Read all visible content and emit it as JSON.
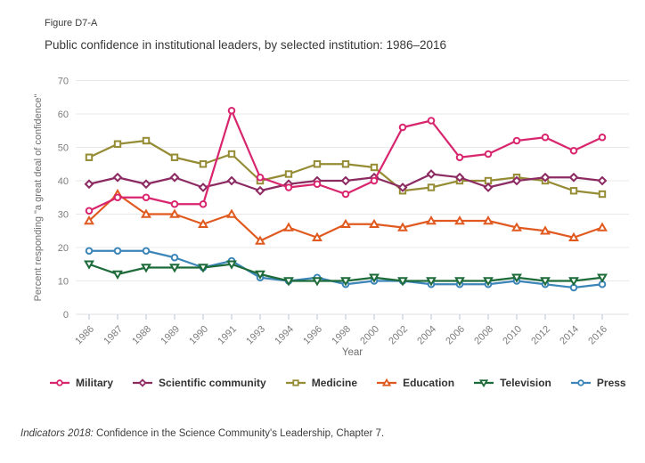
{
  "figure_label": "Figure D7-A",
  "title": "Public confidence in institutional leaders, by selected institution: 1986–2016",
  "footer": {
    "source_italic": "Indicators 2018:",
    "source_rest": " Confidence in the Science Community's Leadership, Chapter 7."
  },
  "theme": {
    "grid_color": "#e8e8e8",
    "axis_line_color": "#e0e0e0",
    "tick_mark_color": "#b9c6da",
    "tick_label_color": "#7d7d7d",
    "axis_title_color": "#6f6f6f",
    "legend_text_color": "#333333",
    "background": "#ffffff"
  },
  "chart_data": {
    "type": "line",
    "title": "Public confidence in institutional leaders, by selected institution: 1986–2016",
    "xlabel": "Year",
    "ylabel": "Percent responding \"a great deal of confidence\"",
    "ylim": [
      0,
      70
    ],
    "yticks": [
      0,
      10,
      20,
      30,
      40,
      50,
      60,
      70
    ],
    "grid": true,
    "legend_position": "bottom",
    "categories": [
      "1986",
      "1987",
      "1988",
      "1989",
      "1990",
      "1991",
      "1993",
      "1994",
      "1996",
      "1998",
      "2000",
      "2002",
      "2004",
      "2006",
      "2008",
      "2010",
      "2012",
      "2014",
      "2016"
    ],
    "series": [
      {
        "name": "Military",
        "color": "#d8256e",
        "marker": "circle",
        "values": [
          31,
          35,
          35,
          33,
          33,
          61,
          41,
          38,
          39,
          36,
          40,
          56,
          58,
          47,
          48,
          52,
          53,
          49,
          53
        ]
      },
      {
        "name": "Scientific community",
        "color": "#8c2a62",
        "marker": "diamond",
        "values": [
          39,
          41,
          39,
          41,
          38,
          40,
          37,
          39,
          40,
          40,
          41,
          38,
          42,
          41,
          38,
          40,
          41,
          41,
          40
        ]
      },
      {
        "name": "Medicine",
        "color": "#958c35",
        "marker": "square",
        "values": [
          47,
          51,
          52,
          47,
          45,
          48,
          40,
          42,
          45,
          45,
          44,
          37,
          38,
          40,
          40,
          41,
          40,
          37,
          36
        ]
      },
      {
        "name": "Education",
        "color": "#e0591f",
        "marker": "triangle-up",
        "values": [
          28,
          36,
          30,
          30,
          27,
          30,
          22,
          26,
          23,
          27,
          27,
          26,
          28,
          28,
          28,
          26,
          25,
          23,
          26
        ]
      },
      {
        "name": "Television",
        "color": "#1e6b3a",
        "marker": "triangle-down",
        "values": [
          15,
          12,
          14,
          14,
          14,
          15,
          12,
          10,
          10,
          10,
          11,
          10,
          10,
          10,
          10,
          11,
          10,
          10,
          11
        ]
      },
      {
        "name": "Press",
        "color": "#3c85b8",
        "marker": "circle",
        "values": [
          19,
          19,
          19,
          17,
          14,
          16,
          11,
          10,
          11,
          9,
          10,
          10,
          9,
          9,
          9,
          10,
          9,
          8,
          9
        ]
      }
    ]
  }
}
